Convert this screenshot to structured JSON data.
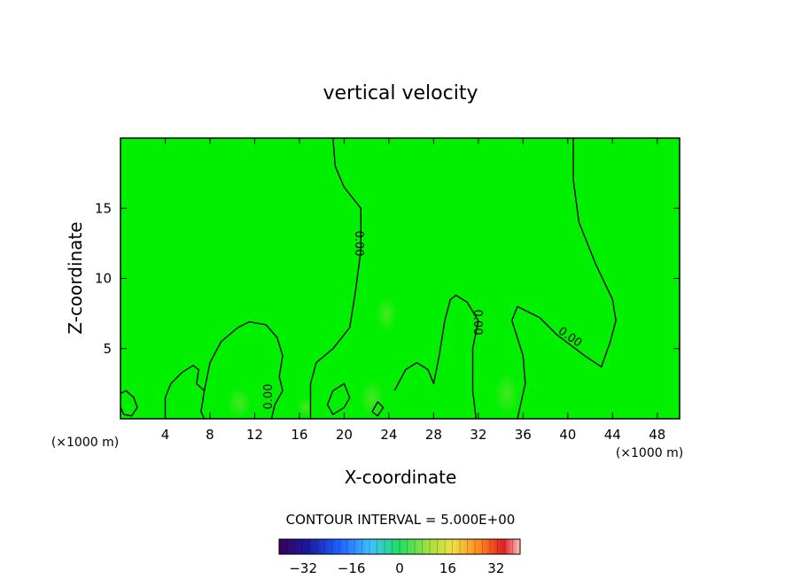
{
  "chart_data": {
    "type": "contour",
    "title": "vertical velocity",
    "xlabel": "X-coordinate",
    "ylabel": "Z-coordinate",
    "x_unit_left": "(×1000 m)",
    "x_unit_right": "(×1000 m)",
    "xlim": [
      0,
      50
    ],
    "ylim": [
      0,
      20
    ],
    "x_ticks": [
      4,
      8,
      12,
      16,
      20,
      24,
      28,
      32,
      36,
      40,
      44,
      48
    ],
    "y_ticks": [
      5,
      10,
      15
    ],
    "contour_interval_label": "CONTOUR INTERVAL = 5.000E+00",
    "contour_level_label": "0.00",
    "colorbar": {
      "range": [
        -40,
        40
      ],
      "ticks": [
        -32,
        -16,
        0,
        16,
        32
      ],
      "colormap": "rainbow",
      "field_color": "#00ff00"
    },
    "zero_contours": [
      {
        "points": [
          [
            19.0,
            20
          ],
          [
            19.2,
            18
          ],
          [
            20.0,
            16.5
          ],
          [
            21.5,
            15
          ],
          [
            21.5,
            12
          ],
          [
            21.0,
            9
          ],
          [
            20.5,
            6.5
          ],
          [
            19.0,
            5
          ],
          [
            17.5,
            4
          ],
          [
            17.0,
            2.5
          ],
          [
            17.0,
            0
          ]
        ]
      },
      {
        "points": [
          [
            40.5,
            20
          ],
          [
            40.5,
            17
          ],
          [
            41.0,
            14
          ],
          [
            42.5,
            11
          ],
          [
            44.0,
            8.5
          ],
          [
            44.3,
            7
          ],
          [
            43.8,
            5.5
          ],
          [
            43.0,
            3.7
          ],
          [
            41.5,
            4.5
          ],
          [
            39.0,
            6
          ],
          [
            37.5,
            7.2
          ],
          [
            35.5,
            8.0
          ],
          [
            35.0,
            7.0
          ],
          [
            36.0,
            4.5
          ],
          [
            36.2,
            2.5
          ],
          [
            35.5,
            0
          ]
        ]
      },
      {
        "points": [
          [
            4.0,
            0
          ],
          [
            4.0,
            1.5
          ],
          [
            4.5,
            2.5
          ],
          [
            5.5,
            3.3
          ],
          [
            6.5,
            3.8
          ],
          [
            7.0,
            3.5
          ],
          [
            6.8,
            2.5
          ],
          [
            7.5,
            2.0
          ],
          [
            7.2,
            0.5
          ],
          [
            7.5,
            0
          ]
        ]
      },
      {
        "points": [
          [
            7.5,
            2.0
          ],
          [
            8.0,
            4.0
          ],
          [
            9.0,
            5.5
          ],
          [
            10.5,
            6.5
          ],
          [
            11.5,
            6.9
          ],
          [
            13.0,
            6.7
          ],
          [
            14.0,
            5.8
          ],
          [
            14.5,
            4.5
          ],
          [
            14.2,
            3.0
          ],
          [
            14.5,
            2.0
          ],
          [
            13.8,
            1.0
          ],
          [
            13.5,
            0
          ]
        ]
      },
      {
        "points": [
          [
            24.5,
            2.0
          ],
          [
            25.5,
            3.5
          ],
          [
            26.5,
            4.0
          ],
          [
            27.5,
            3.5
          ],
          [
            28.0,
            2.5
          ],
          [
            28.5,
            4.5
          ],
          [
            29.0,
            7.0
          ],
          [
            29.5,
            8.5
          ],
          [
            30.0,
            8.8
          ],
          [
            31.0,
            8.3
          ],
          [
            32.0,
            7.0
          ],
          [
            31.5,
            5.0
          ],
          [
            31.5,
            2.0
          ],
          [
            31.8,
            0
          ]
        ]
      },
      {
        "points": [
          [
            19.0,
            2.0
          ],
          [
            18.5,
            1.0
          ],
          [
            19.0,
            0.3
          ],
          [
            20.0,
            0.8
          ],
          [
            20.5,
            1.5
          ],
          [
            20.0,
            2.5
          ],
          [
            19.0,
            2.0
          ]
        ]
      },
      {
        "points": [
          [
            0,
            1.8
          ],
          [
            0.5,
            2.0
          ],
          [
            1.2,
            1.5
          ],
          [
            1.5,
            0.8
          ],
          [
            1.0,
            0.2
          ],
          [
            0.3,
            0.3
          ],
          [
            0,
            0.8
          ]
        ]
      },
      {
        "points": [
          [
            22.5,
            0.5
          ],
          [
            23.0,
            1.2
          ],
          [
            23.5,
            0.8
          ],
          [
            23.0,
            0.2
          ],
          [
            22.5,
            0.5
          ]
        ]
      }
    ]
  }
}
